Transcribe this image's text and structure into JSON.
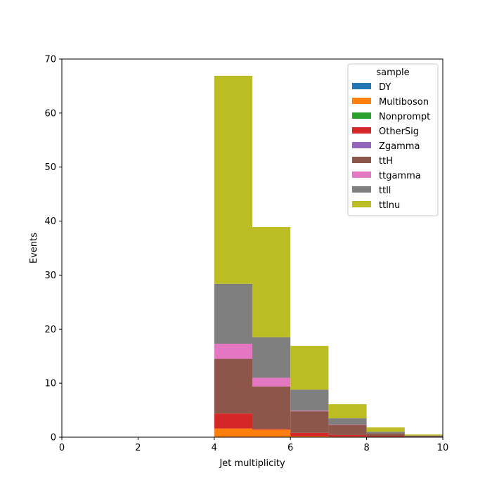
{
  "chart_data": {
    "type": "bar",
    "subtype": "stacked-histogram",
    "xlabel": "Jet multiplicity",
    "ylabel": "Events",
    "xlim": [
      0,
      10
    ],
    "ylim": [
      0,
      70
    ],
    "xticks": [
      0,
      2,
      4,
      6,
      8,
      10
    ],
    "yticks": [
      0,
      10,
      20,
      30,
      40,
      50,
      60,
      70
    ],
    "grid": false,
    "legend": {
      "title": "sample",
      "placement": "top-right"
    },
    "bin_edges": [
      4,
      5,
      6,
      7,
      8,
      9,
      10
    ],
    "series": [
      {
        "name": "DY",
        "color": "#1f77b4",
        "values": [
          0,
          0,
          0,
          0,
          0,
          0
        ]
      },
      {
        "name": "Multiboson",
        "color": "#ff7f0e",
        "values": [
          1.6,
          1.4,
          0.2,
          0.1,
          0.05,
          0.0
        ]
      },
      {
        "name": "Nonprompt",
        "color": "#2ca02c",
        "values": [
          0,
          0,
          0,
          0,
          0,
          0
        ]
      },
      {
        "name": "OtherSig",
        "color": "#d62728",
        "values": [
          2.8,
          0.1,
          0.6,
          0.3,
          0.15,
          0.05
        ]
      },
      {
        "name": "Zgamma",
        "color": "#9467bd",
        "values": [
          0,
          0,
          0,
          0,
          0,
          0
        ]
      },
      {
        "name": "ttH",
        "color": "#8c564b",
        "values": [
          10.1,
          7.9,
          4.0,
          1.9,
          0.5,
          0.15
        ]
      },
      {
        "name": "ttgamma",
        "color": "#e377c2",
        "values": [
          2.8,
          1.6,
          0.1,
          0.05,
          0.0,
          0.0
        ]
      },
      {
        "name": "ttll",
        "color": "#7f7f7f",
        "values": [
          11.1,
          7.5,
          3.9,
          1.15,
          0.3,
          0.1
        ]
      },
      {
        "name": "ttlnu",
        "color": "#bcbd22",
        "values": [
          38.5,
          20.4,
          8.1,
          2.6,
          0.8,
          0.2
        ]
      }
    ]
  }
}
